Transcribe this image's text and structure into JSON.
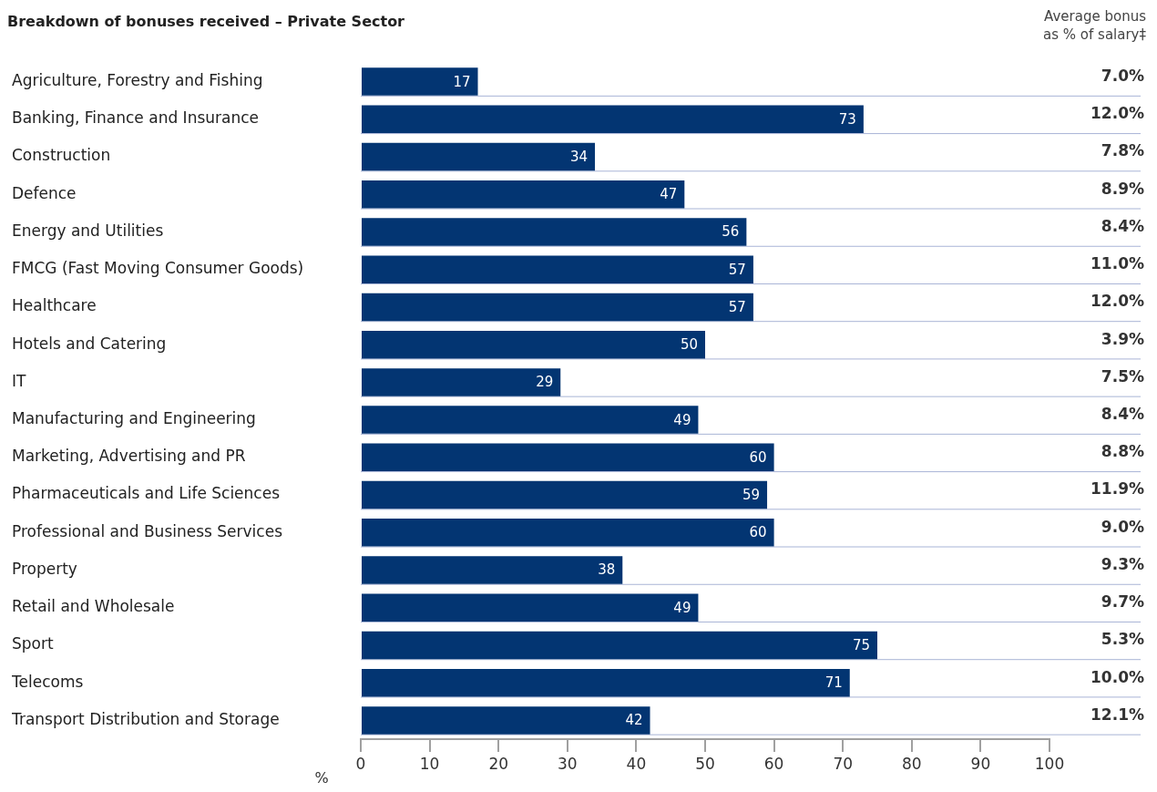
{
  "chart_data": {
    "type": "bar",
    "orientation": "horizontal",
    "title": "Breakdown of bonuses received – Private Sector",
    "xlabel": "%",
    "categories": [
      "Agriculture, Forestry and Fishing",
      "Banking, Finance and Insurance",
      "Construction",
      "Defence",
      "Energy and Utilities",
      "FMCG (Fast Moving Consumer Goods)",
      "Healthcare",
      "Hotels and Catering",
      "IT",
      "Manufacturing and Engineering",
      "Marketing, Advertising and PR",
      "Pharmaceuticals and Life Sciences",
      "Professional and Business Services",
      "Property",
      "Retail and Wholesale",
      "Sport",
      "Telecoms",
      "Transport Distribution and Storage"
    ],
    "values": [
      17,
      73,
      34,
      47,
      56,
      57,
      57,
      50,
      29,
      49,
      60,
      59,
      60,
      38,
      49,
      75,
      71,
      42
    ],
    "color": "#033572",
    "data_labels": true,
    "xlim": [
      0,
      100
    ],
    "xticks": [
      0,
      10,
      20,
      30,
      40,
      50,
      60,
      70,
      80,
      90,
      100
    ],
    "grid": "y",
    "legend": false,
    "annotations": [
      "Average bonus as % of salary‡",
      "7.0%",
      "12.0%",
      "7.8%",
      "8.9%",
      "8.4%",
      "11.0%",
      "12.0%",
      "3.9%",
      "7.5%",
      "8.4%",
      "8.8%",
      "11.9%",
      "9.0%",
      "9.3%",
      "9.7%",
      "5.3%",
      "10.0%",
      "12.1%"
    ]
  }
}
